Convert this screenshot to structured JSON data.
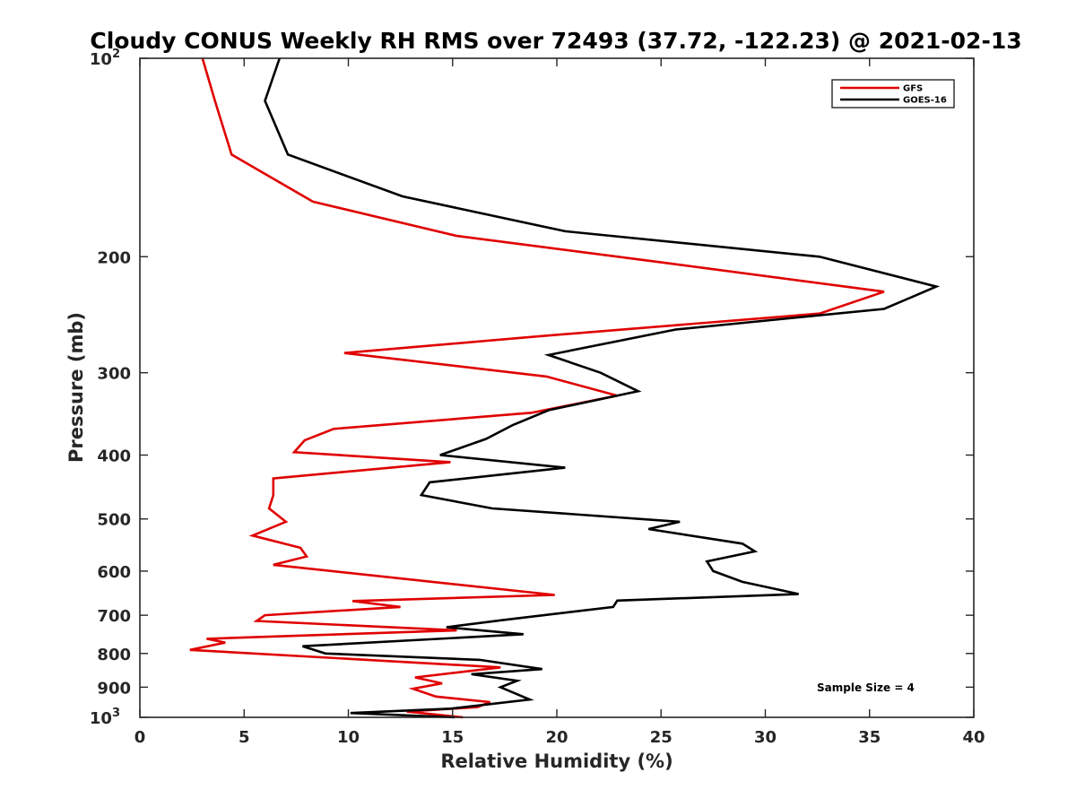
{
  "chart_data": {
    "type": "line",
    "title": "Cloudy CONUS Weekly RH RMS over 72493 (37.72, -122.23) @ 2021-02-13",
    "xlabel": "Relative Humidity (%)",
    "ylabel": "Pressure (mb)",
    "xlim": [
      0,
      40
    ],
    "ylim": [
      100,
      1000
    ],
    "y_scale": "log",
    "y_reversed": true,
    "grid": false,
    "legend_position": "top-right",
    "x_ticks": [
      0,
      5,
      10,
      15,
      20,
      25,
      30,
      35,
      40
    ],
    "y_ticks": [
      {
        "value": 100,
        "base": "10",
        "exp": "2"
      },
      {
        "value": 200,
        "label": "200"
      },
      {
        "value": 300,
        "label": "300"
      },
      {
        "value": 400,
        "label": "400"
      },
      {
        "value": 500,
        "label": "500"
      },
      {
        "value": 600,
        "label": "600"
      },
      {
        "value": 700,
        "label": "700"
      },
      {
        "value": 800,
        "label": "800"
      },
      {
        "value": 900,
        "label": "900"
      },
      {
        "value": 1000,
        "base": "10",
        "exp": "3"
      }
    ],
    "annotation": "Sample Size = 4",
    "series": [
      {
        "name": "GFS",
        "color": "#e00000",
        "points": [
          [
            3.0,
            100
          ],
          [
            3.6,
            116
          ],
          [
            4.4,
            140
          ],
          [
            8.3,
            165
          ],
          [
            15.2,
            186
          ],
          [
            25.0,
            204
          ],
          [
            35.7,
            226
          ],
          [
            32.6,
            244
          ],
          [
            19.2,
            264
          ],
          [
            9.8,
            280
          ],
          [
            19.5,
            304
          ],
          [
            22.9,
            325
          ],
          [
            18.8,
            345
          ],
          [
            9.3,
            365
          ],
          [
            7.9,
            380
          ],
          [
            7.4,
            396
          ],
          [
            14.9,
            410
          ],
          [
            6.4,
            434
          ],
          [
            6.4,
            460
          ],
          [
            6.2,
            482
          ],
          [
            7.0,
            505
          ],
          [
            5.4,
            530
          ],
          [
            7.7,
            553
          ],
          [
            8.0,
            570
          ],
          [
            6.4,
            587
          ],
          [
            19.9,
            652
          ],
          [
            10.2,
            666
          ],
          [
            12.5,
            680
          ],
          [
            6.0,
            700
          ],
          [
            5.6,
            714
          ],
          [
            15.2,
            738
          ],
          [
            3.2,
            760
          ],
          [
            4.1,
            770
          ],
          [
            2.4,
            790
          ],
          [
            17.3,
            840
          ],
          [
            13.2,
            870
          ],
          [
            14.5,
            888
          ],
          [
            13.1,
            905
          ],
          [
            14.2,
            930
          ],
          [
            16.8,
            948
          ],
          [
            16.2,
            965
          ],
          [
            12.8,
            980
          ],
          [
            15.5,
            1000
          ]
        ]
      },
      {
        "name": "GOES-16",
        "color": "#000000",
        "points": [
          [
            6.7,
            100
          ],
          [
            6.0,
            116
          ],
          [
            7.1,
            140
          ],
          [
            12.6,
            162
          ],
          [
            20.4,
            183
          ],
          [
            32.6,
            200
          ],
          [
            38.2,
            222
          ],
          [
            35.7,
            240
          ],
          [
            25.7,
            258
          ],
          [
            19.6,
            282
          ],
          [
            22.1,
            300
          ],
          [
            23.9,
            320
          ],
          [
            19.6,
            342
          ],
          [
            17.9,
            360
          ],
          [
            16.6,
            378
          ],
          [
            14.4,
            400
          ],
          [
            20.4,
            418
          ],
          [
            13.9,
            440
          ],
          [
            13.5,
            460
          ],
          [
            16.9,
            482
          ],
          [
            25.9,
            505
          ],
          [
            24.4,
            518
          ],
          [
            28.9,
            545
          ],
          [
            29.5,
            560
          ],
          [
            27.2,
            580
          ],
          [
            27.5,
            600
          ],
          [
            28.9,
            623
          ],
          [
            31.6,
            650
          ],
          [
            22.9,
            665
          ],
          [
            22.7,
            680
          ],
          [
            17.4,
            712
          ],
          [
            14.7,
            730
          ],
          [
            18.4,
            748
          ],
          [
            7.8,
            780
          ],
          [
            8.9,
            800
          ],
          [
            16.3,
            818
          ],
          [
            19.3,
            845
          ],
          [
            15.9,
            860
          ],
          [
            18.1,
            880
          ],
          [
            17.3,
            900
          ],
          [
            18.7,
            940
          ],
          [
            14.9,
            970
          ],
          [
            10.1,
            985
          ],
          [
            15.1,
            1000
          ]
        ]
      }
    ]
  }
}
